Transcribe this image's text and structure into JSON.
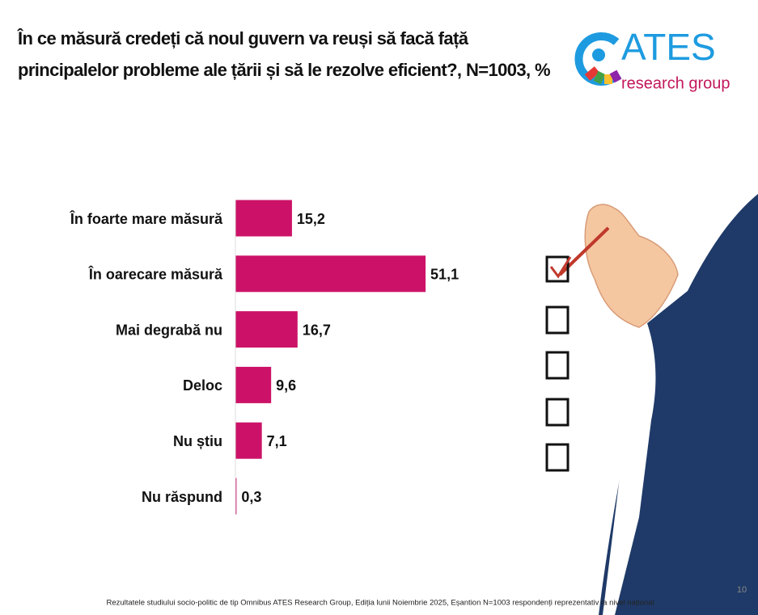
{
  "chart_data": {
    "type": "bar",
    "orientation": "horizontal",
    "title": "În ce măsură credeți că noul guvern va reuși să facă față principalelor probleme ale țării și să le rezolve eficient?, N=1003, %",
    "categories": [
      "În foarte mare măsură",
      "În oarecare măsură",
      "Mai degrabă nu",
      "Deloc",
      "Nu știu",
      "Nu răspund"
    ],
    "values": [
      15.2,
      51.1,
      16.7,
      9.6,
      7.1,
      0.3
    ],
    "value_labels": [
      "15,2",
      "51,1",
      "16,7",
      "9,6",
      "7,1",
      "0,3"
    ],
    "color": "#cc1268"
  },
  "logo": {
    "name": "ATES",
    "subtitle": "research group"
  },
  "footer": "Rezultatele studiului socio-politic de tip Omnibus ATES Research Group, Ediția lunii Noiembrie 2025, Eșantion N=1003 respondenți reprezentativ la nivel național",
  "page_number": "10"
}
